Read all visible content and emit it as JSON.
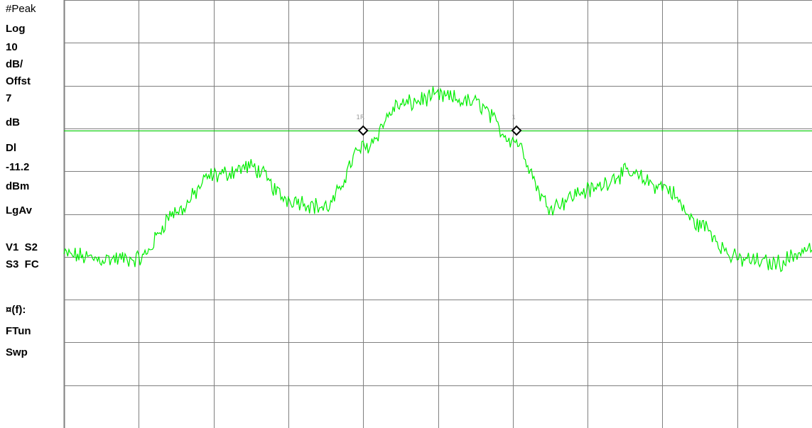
{
  "colors": {
    "background": "#ffffff",
    "grid": "#7f7f7f",
    "trace": "#00ee00",
    "display_line": "#00cc00",
    "marker": "#000000",
    "marker_label": "#9a9a9a",
    "annotation_text": "#000000"
  },
  "annotations": {
    "detector": "#Peak",
    "scale_type": "Log",
    "scale_value": "10",
    "scale_unit": "dB/",
    "offset_label": "Offst",
    "offset_value": "7",
    "offset_unit": "dB",
    "display_line_label": "Dl",
    "display_line_value": "-11.2",
    "display_line_unit": "dBm",
    "averaging": "LgAv",
    "flags_row1": "V1  S2",
    "flags_row2": "S3  FC",
    "mode_line1": "¤(f):",
    "mode_line2": "FTun",
    "mode_line3": "Swp"
  },
  "markers": [
    {
      "label": "1R"
    },
    {
      "label": "1"
    }
  ],
  "chart_data": {
    "type": "line",
    "grid": true,
    "grid_divisions": {
      "x": 10,
      "y": 10
    },
    "scale_db_per_div": 10,
    "offset_db": 7,
    "display_line_dbm": -11.2,
    "ylim_div": [
      0,
      10
    ],
    "series": [
      {
        "x_div": [
          0,
          0.5,
          1.0,
          1.5,
          2.0,
          2.5,
          3.0,
          3.5,
          4.0,
          4.5,
          5.0,
          5.5,
          6.0,
          6.5,
          7.0,
          7.5,
          8.0,
          8.5,
          9.0,
          9.5,
          10.0
        ],
        "y_div": [
          4.05,
          3.95,
          3.95,
          5.05,
          5.9,
          6.1,
          5.35,
          5.15,
          6.55,
          7.55,
          7.75,
          7.6,
          6.75,
          5.2,
          5.55,
          5.95,
          5.65,
          4.75,
          3.95,
          3.85,
          4.2
        ]
      }
    ],
    "marker_positions_div": [
      {
        "label": "1R",
        "x_div": 4.0,
        "y_div": 6.95
      },
      {
        "label": "1",
        "x_div": 6.05,
        "y_div": 6.95
      }
    ]
  }
}
